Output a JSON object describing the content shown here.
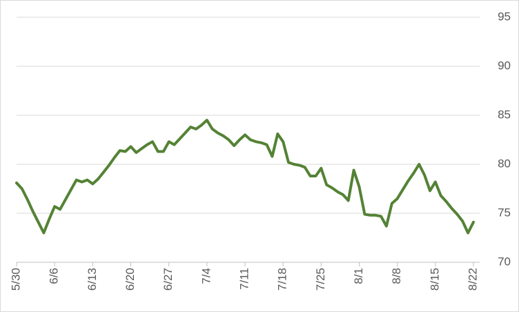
{
  "chart_data": {
    "type": "line",
    "categories": [
      "5/30",
      null,
      null,
      null,
      null,
      null,
      null,
      "6/6",
      null,
      null,
      null,
      null,
      null,
      null,
      "6/13",
      null,
      null,
      null,
      null,
      null,
      null,
      "6/20",
      null,
      null,
      null,
      null,
      null,
      null,
      "6/27",
      null,
      null,
      null,
      null,
      null,
      null,
      "7/4",
      null,
      null,
      null,
      null,
      null,
      null,
      "7/11",
      null,
      null,
      null,
      null,
      null,
      null,
      "7/18",
      null,
      null,
      null,
      null,
      null,
      null,
      "7/25",
      null,
      null,
      null,
      null,
      null,
      null,
      "8/1",
      null,
      null,
      null,
      null,
      null,
      null,
      "8/8",
      null,
      null,
      null,
      null,
      null,
      null,
      "8/15",
      null,
      null,
      null,
      null,
      null,
      null,
      "8/22"
    ],
    "series": [
      {
        "color": "#548235",
        "values": [
          78.1,
          77.5,
          76.4,
          75.2,
          74.1,
          73.0,
          74.4,
          75.7,
          75.4,
          76.4,
          77.4,
          78.4,
          78.2,
          78.4,
          78.0,
          78.5,
          79.2,
          79.9,
          80.7,
          81.4,
          81.3,
          81.8,
          81.2,
          81.6,
          82.0,
          82.3,
          81.3,
          81.3,
          82.3,
          82.0,
          82.6,
          83.2,
          83.8,
          83.6,
          84.0,
          84.5,
          83.6,
          83.2,
          82.9,
          82.5,
          81.9,
          82.5,
          83.0,
          82.5,
          82.3,
          82.2,
          82.0,
          80.8,
          83.1,
          82.3,
          80.2,
          80.0,
          79.9,
          79.7,
          78.8,
          78.8,
          79.6,
          77.9,
          77.6,
          77.2,
          76.9,
          76.3,
          79.4,
          77.7,
          74.9,
          74.8,
          74.8,
          74.7,
          73.7,
          76.0,
          76.5,
          77.4,
          78.3,
          79.1,
          80.0,
          78.9,
          77.3,
          78.2,
          76.8,
          76.2,
          75.5,
          74.9,
          74.2,
          73.0,
          74.1
        ]
      }
    ],
    "ylim": [
      70,
      95
    ],
    "yticks": [
      70,
      75,
      80,
      85,
      90,
      95
    ],
    "grid": true,
    "y_axis_side": "right"
  }
}
